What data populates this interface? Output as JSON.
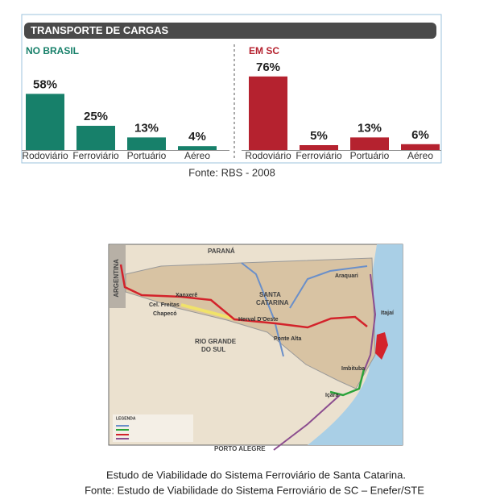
{
  "header_title": "TRANSPORTE DE CARGAS",
  "chart_data": [
    {
      "type": "bar",
      "title": "NO BRASIL",
      "color": "#17806a",
      "categories": [
        "Rodoviário",
        "Ferroviário",
        "Portuário",
        "Aéreo"
      ],
      "values": [
        58,
        25,
        13,
        4
      ],
      "value_labels": [
        "58%",
        "25%",
        "13%",
        "4%"
      ]
    },
    {
      "type": "bar",
      "title": "EM SC",
      "color": "#b5222f",
      "categories": [
        "Rodoviário",
        "Ferroviário",
        "Portuário",
        "Aéreo"
      ],
      "values": [
        76,
        5,
        13,
        6
      ],
      "value_labels": [
        "76%",
        "5%",
        "13%",
        "6%"
      ]
    }
  ],
  "chart_source": "Fonte: RBS - 2008",
  "map": {
    "labels": [
      "PARANÁ",
      "ARGENTINA",
      "SANTA",
      "CATARINA",
      "Xanxerê",
      "Cel. Freitas",
      "Chapecó",
      "Herval D'Oeste",
      "Ponte Alta",
      "RIO GRANDE",
      "DO SUL",
      "Araquari",
      "Itajaí",
      "Imbituba",
      "Içara",
      "PORTO ALEGRE",
      "LEGENDA"
    ]
  },
  "captions": [
    "Estudo de Viabilidade do Sistema Ferroviário de Santa Catarina.",
    "Fonte: Estudo de Viabilidade do Sistema Ferroviário de SC – Enefer/STE"
  ]
}
